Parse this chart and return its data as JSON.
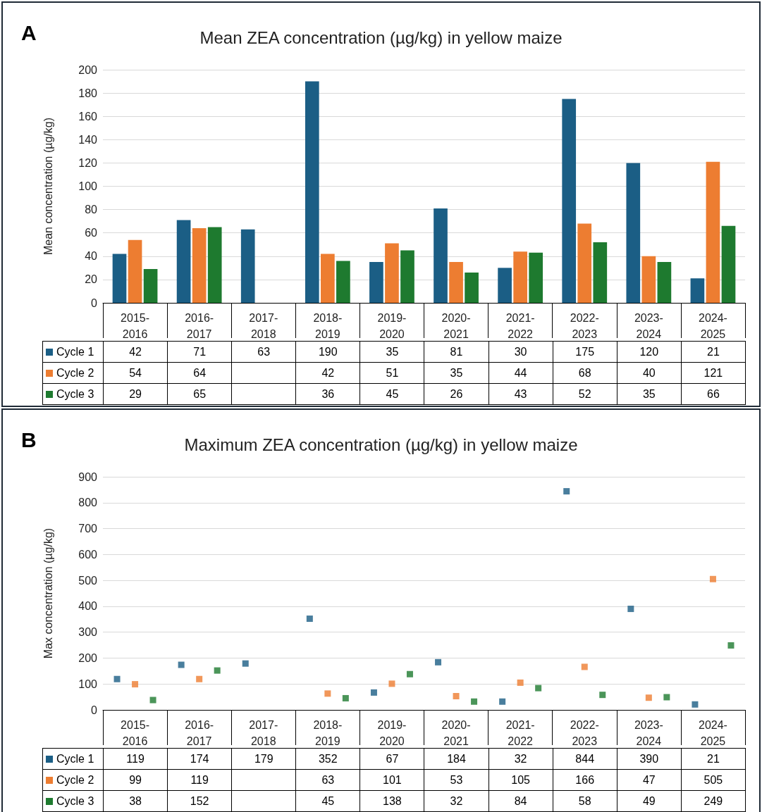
{
  "chart_data": [
    {
      "type": "bar",
      "title": "Mean ZEA concentration (µg/kg) in yellow maize",
      "ylabel": "Mean concentration (µg/kg)",
      "annotations": [
        "A"
      ],
      "categories": [
        "2015-2016",
        "2016-2017",
        "2017-2018",
        "2018-2019",
        "2019-2020",
        "2020-2021",
        "2021-2022",
        "2022-2023",
        "2023-2024",
        "2024-2025"
      ],
      "series": [
        {
          "name": "Cycle 1",
          "color": "#1b5e85",
          "values": [
            42,
            71,
            63,
            190,
            35,
            81,
            30,
            175,
            120,
            21
          ]
        },
        {
          "name": "Cycle 2",
          "color": "#ed7d31",
          "values": [
            54,
            64,
            null,
            42,
            51,
            35,
            44,
            68,
            40,
            121
          ]
        },
        {
          "name": "Cycle 3",
          "color": "#1e7a2f",
          "values": [
            29,
            65,
            null,
            36,
            45,
            26,
            43,
            52,
            35,
            66
          ]
        }
      ],
      "ylim": [
        0,
        200
      ],
      "yticks": [
        0,
        20,
        40,
        60,
        80,
        100,
        120,
        140,
        160,
        180,
        200
      ],
      "grid": "y",
      "legend": "bottom",
      "data_labels": true
    },
    {
      "type": "scatter",
      "title": "Maximum ZEA concentration (µg/kg) in yellow maize",
      "ylabel": "Max concentration (µg/kg)",
      "annotations": [
        "B"
      ],
      "categories": [
        "2015-2016",
        "2016-2017",
        "2017-2018",
        "2018-2019",
        "2019-2020",
        "2020-2021",
        "2021-2022",
        "2022-2023",
        "2023-2024",
        "2024-2025"
      ],
      "series": [
        {
          "name": "Cycle 1",
          "color": "#1b5e85",
          "values": [
            119,
            174,
            179,
            352,
            67,
            184,
            32,
            844,
            390,
            21
          ]
        },
        {
          "name": "Cycle 2",
          "color": "#ed7d31",
          "values": [
            99,
            119,
            null,
            63,
            101,
            53,
            105,
            166,
            47,
            505
          ]
        },
        {
          "name": "Cycle 3",
          "color": "#1e7a2f",
          "values": [
            38,
            152,
            null,
            45,
            138,
            32,
            84,
            58,
            49,
            249
          ]
        }
      ],
      "ylim": [
        0,
        900
      ],
      "yticks": [
        0,
        100,
        200,
        300,
        400,
        500,
        600,
        700,
        800,
        900
      ],
      "grid": "y",
      "legend": "bottom",
      "marker": "square",
      "data_labels": true
    }
  ]
}
